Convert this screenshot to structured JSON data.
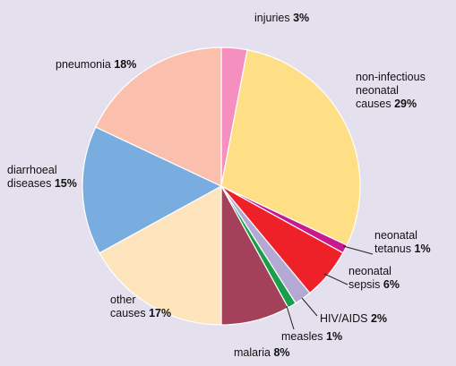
{
  "chart_data": {
    "type": "pie",
    "start_angle_deg": 0,
    "direction": "clockwise",
    "slices": [
      {
        "key": "injuries",
        "label": "injuries",
        "value": 3,
        "pct_text": "3%",
        "color": "#f48fc0"
      },
      {
        "key": "non-infectious",
        "label": "non-infectious neonatal causes",
        "value": 29,
        "pct_text": "29%",
        "color": "#fedf86"
      },
      {
        "key": "neonatal-tetanus",
        "label": "neonatal tetanus",
        "value": 1,
        "pct_text": "1%",
        "color": "#c8198e"
      },
      {
        "key": "neonatal-sepsis",
        "label": "neonatal sepsis",
        "value": 6,
        "pct_text": "6%",
        "color": "#ee2028"
      },
      {
        "key": "hiv-aids",
        "label": "HIV/AIDS",
        "value": 2,
        "pct_text": "2%",
        "color": "#b3a9d4"
      },
      {
        "key": "measles",
        "label": "measles",
        "value": 1,
        "pct_text": "1%",
        "color": "#1a9e4a"
      },
      {
        "key": "malaria",
        "label": "malaria",
        "value": 8,
        "pct_text": "8%",
        "color": "#a3415a"
      },
      {
        "key": "other",
        "label": "other causes",
        "value": 17,
        "pct_text": "17%",
        "color": "#fee4bc"
      },
      {
        "key": "diarrhoeal",
        "label": "diarrhoeal diseases",
        "value": 15,
        "pct_text": "15%",
        "color": "#7aaddf"
      },
      {
        "key": "pneumonia",
        "label": "pneumonia",
        "value": 18,
        "pct_text": "18%",
        "color": "#fbbfad"
      }
    ]
  }
}
